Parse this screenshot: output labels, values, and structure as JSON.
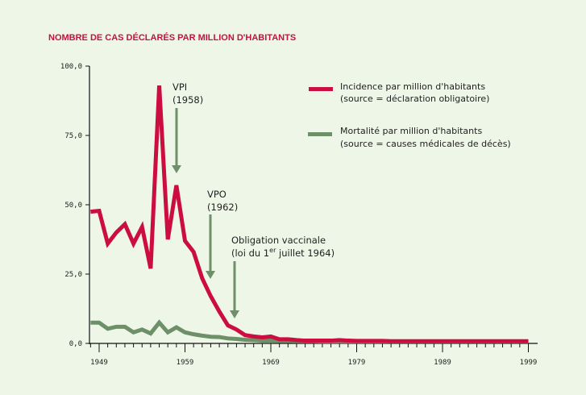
{
  "chart_data": {
    "type": "line",
    "title": "NOMBRE DE CAS DÉCLARÉS PAR MILLION D'HABITANTS",
    "xlabel": "",
    "ylabel": "",
    "xlim": [
      1948,
      1999
    ],
    "ylim": [
      0,
      100
    ],
    "grid": false,
    "x_ticks": [
      "1949",
      "1959",
      "1969",
      "1979",
      "1989",
      "1999"
    ],
    "y_ticks": [
      "0,0",
      "25,0",
      "50,0",
      "75,0",
      "100,0"
    ],
    "legend_position": "top-right",
    "x": [
      1948,
      1949,
      1950,
      1951,
      1952,
      1953,
      1954,
      1955,
      1956,
      1957,
      1958,
      1959,
      1960,
      1961,
      1962,
      1963,
      1964,
      1965,
      1966,
      1967,
      1968,
      1969,
      1970,
      1971,
      1972,
      1973,
      1974,
      1975,
      1976,
      1977,
      1978,
      1979,
      1980,
      1981,
      1982,
      1983,
      1984,
      1985,
      1986,
      1987,
      1988,
      1989,
      1990,
      1991,
      1992,
      1993,
      1994,
      1995,
      1996,
      1997,
      1998,
      1999
    ],
    "series": [
      {
        "name": "Incidence par million d'habitants",
        "source": "(source = déclaration obligatoire)",
        "color": "#cc0d3f",
        "values": [
          47.5,
          47.8,
          36,
          40,
          43,
          36,
          42,
          27,
          93,
          37.5,
          57,
          37,
          33,
          23.5,
          17,
          11.5,
          6.5,
          5,
          3,
          2.5,
          2.2,
          2.5,
          1.5,
          1.5,
          1.2,
          1.0,
          1.0,
          1.0,
          1.0,
          1.2,
          1.0,
          0.9,
          0.9,
          0.9,
          0.9,
          0.8,
          0.8,
          0.8,
          0.8,
          0.8,
          0.8,
          0.8,
          0.8,
          0.8,
          0.8,
          0.8,
          0.8,
          0.8,
          0.8,
          0.8,
          0.8,
          0.8
        ]
      },
      {
        "name": "Mortalité par million d'habitants",
        "source": "(source = causes médicales de décès)",
        "color": "#6e9068",
        "values": [
          7.5,
          7.5,
          5.3,
          6,
          6,
          4,
          5,
          3.6,
          7.5,
          4,
          5.8,
          4,
          3.3,
          2.8,
          2.4,
          2.3,
          1.8,
          1.6,
          1.3,
          1.2,
          1.0,
          1.0,
          0.9,
          0.9,
          0.8,
          0.8,
          0.8,
          0.7,
          0.7,
          0.7,
          0.7,
          0.7,
          0.7,
          0.7,
          0.7,
          0.7,
          0.7,
          0.7,
          0.7,
          0.7,
          0.7,
          0.7,
          0.7,
          0.7,
          0.7,
          0.7,
          0.7,
          0.7,
          0.7,
          0.7,
          0.7,
          0.7
        ]
      }
    ],
    "annotations": [
      {
        "line1": "VPI",
        "line2": "(1958)",
        "year": 1958
      },
      {
        "line1": "VPO",
        "line2": "(1962)",
        "year": 1962
      },
      {
        "line1": "Obligation vaccinale",
        "line2_a": "(loi du 1",
        "line2_sup": "er",
        "line2_b": " juillet 1964)",
        "year": 1964
      }
    ]
  },
  "colors": {
    "background": "#eef6e8",
    "arrow": "#6e9068",
    "title": "#c8103c"
  }
}
